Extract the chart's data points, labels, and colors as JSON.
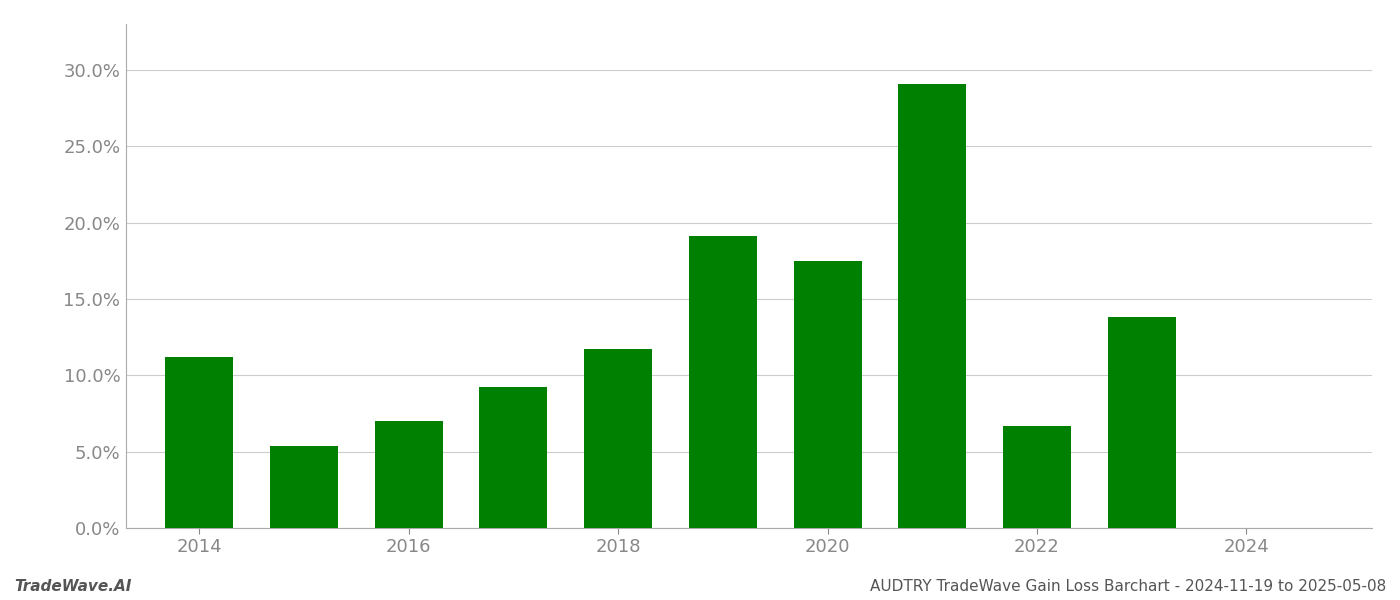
{
  "years": [
    2014,
    2015,
    2016,
    2017,
    2018,
    2019,
    2020,
    2021,
    2022,
    2023,
    2024
  ],
  "values": [
    0.112,
    0.054,
    0.07,
    0.092,
    0.117,
    0.191,
    0.175,
    0.291,
    0.067,
    0.138,
    0.0
  ],
  "bar_color": "#008000",
  "footer_left": "TradeWave.AI",
  "footer_right": "AUDTRY TradeWave Gain Loss Barchart - 2024-11-19 to 2025-05-08",
  "ylim": [
    0,
    0.33
  ],
  "yticks": [
    0.0,
    0.05,
    0.1,
    0.15,
    0.2,
    0.25,
    0.3
  ],
  "background_color": "#ffffff",
  "grid_color": "#cccccc",
  "bar_width": 0.65,
  "figsize": [
    14.0,
    6.0
  ],
  "dpi": 100,
  "tick_color": "#888888",
  "tick_fontsize": 13,
  "footer_fontsize": 11,
  "xlim_left": 2013.3,
  "xlim_right": 2025.2
}
